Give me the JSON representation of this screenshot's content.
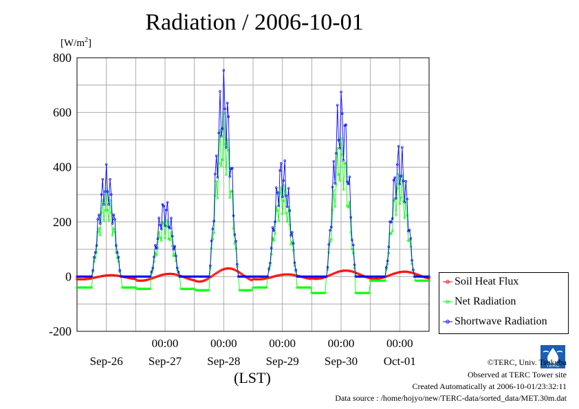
{
  "title": "Radiation / 2006-10-01",
  "unit": "[W/m2]",
  "unit_base": "[W/m",
  "unit_sup": "2",
  "unit_end": "]",
  "xlabel": "(LST)",
  "credits": {
    "copyright": "©TERC, Univ. Tsukuba",
    "observed": "Observed at TERC Tower site",
    "created": "Created Automatically at 2006-10-01/23:32:11",
    "source": "Data source : /home/hojyo/new/TERC-data/sorted_data/MET.30m.dat"
  },
  "logo_text": "TERC",
  "chart_data": {
    "type": "line",
    "title": "Radiation / 2006-10-01",
    "xlabel": "(LST)",
    "ylabel": "[W/m2]",
    "ylim": [
      -200,
      800
    ],
    "yticks": [
      -200,
      0,
      200,
      400,
      600,
      800
    ],
    "xlim_days": [
      -0.5,
      5.5
    ],
    "time_tick_labels": [
      "00:00",
      "00:00",
      "00:00",
      "00:00",
      "00:00"
    ],
    "date_labels": [
      "Sep-26",
      "Sep-27",
      "Sep-28",
      "Sep-29",
      "Sep-30",
      "Oct-01"
    ],
    "grid": true,
    "legend_position": "bottom-right",
    "series": [
      {
        "name": "Soil Heat Flux",
        "color": "#ff0000",
        "peaks": [
          5,
          10,
          30,
          8,
          22,
          18
        ],
        "night_min": [
          -10,
          -15,
          -18,
          -10,
          -8,
          -8
        ]
      },
      {
        "name": "Net Radiation",
        "color": "#00ff00",
        "peaks": [
          320,
          220,
          600,
          350,
          520,
          390
        ],
        "night_min": [
          -40,
          -45,
          -50,
          -40,
          -60,
          -15
        ]
      },
      {
        "name": "Shortwave Radiation",
        "color": "#0000ff",
        "peaks": [
          410,
          290,
          760,
          445,
          695,
          495
        ],
        "night_min": [
          0,
          0,
          0,
          0,
          0,
          0
        ]
      }
    ]
  }
}
